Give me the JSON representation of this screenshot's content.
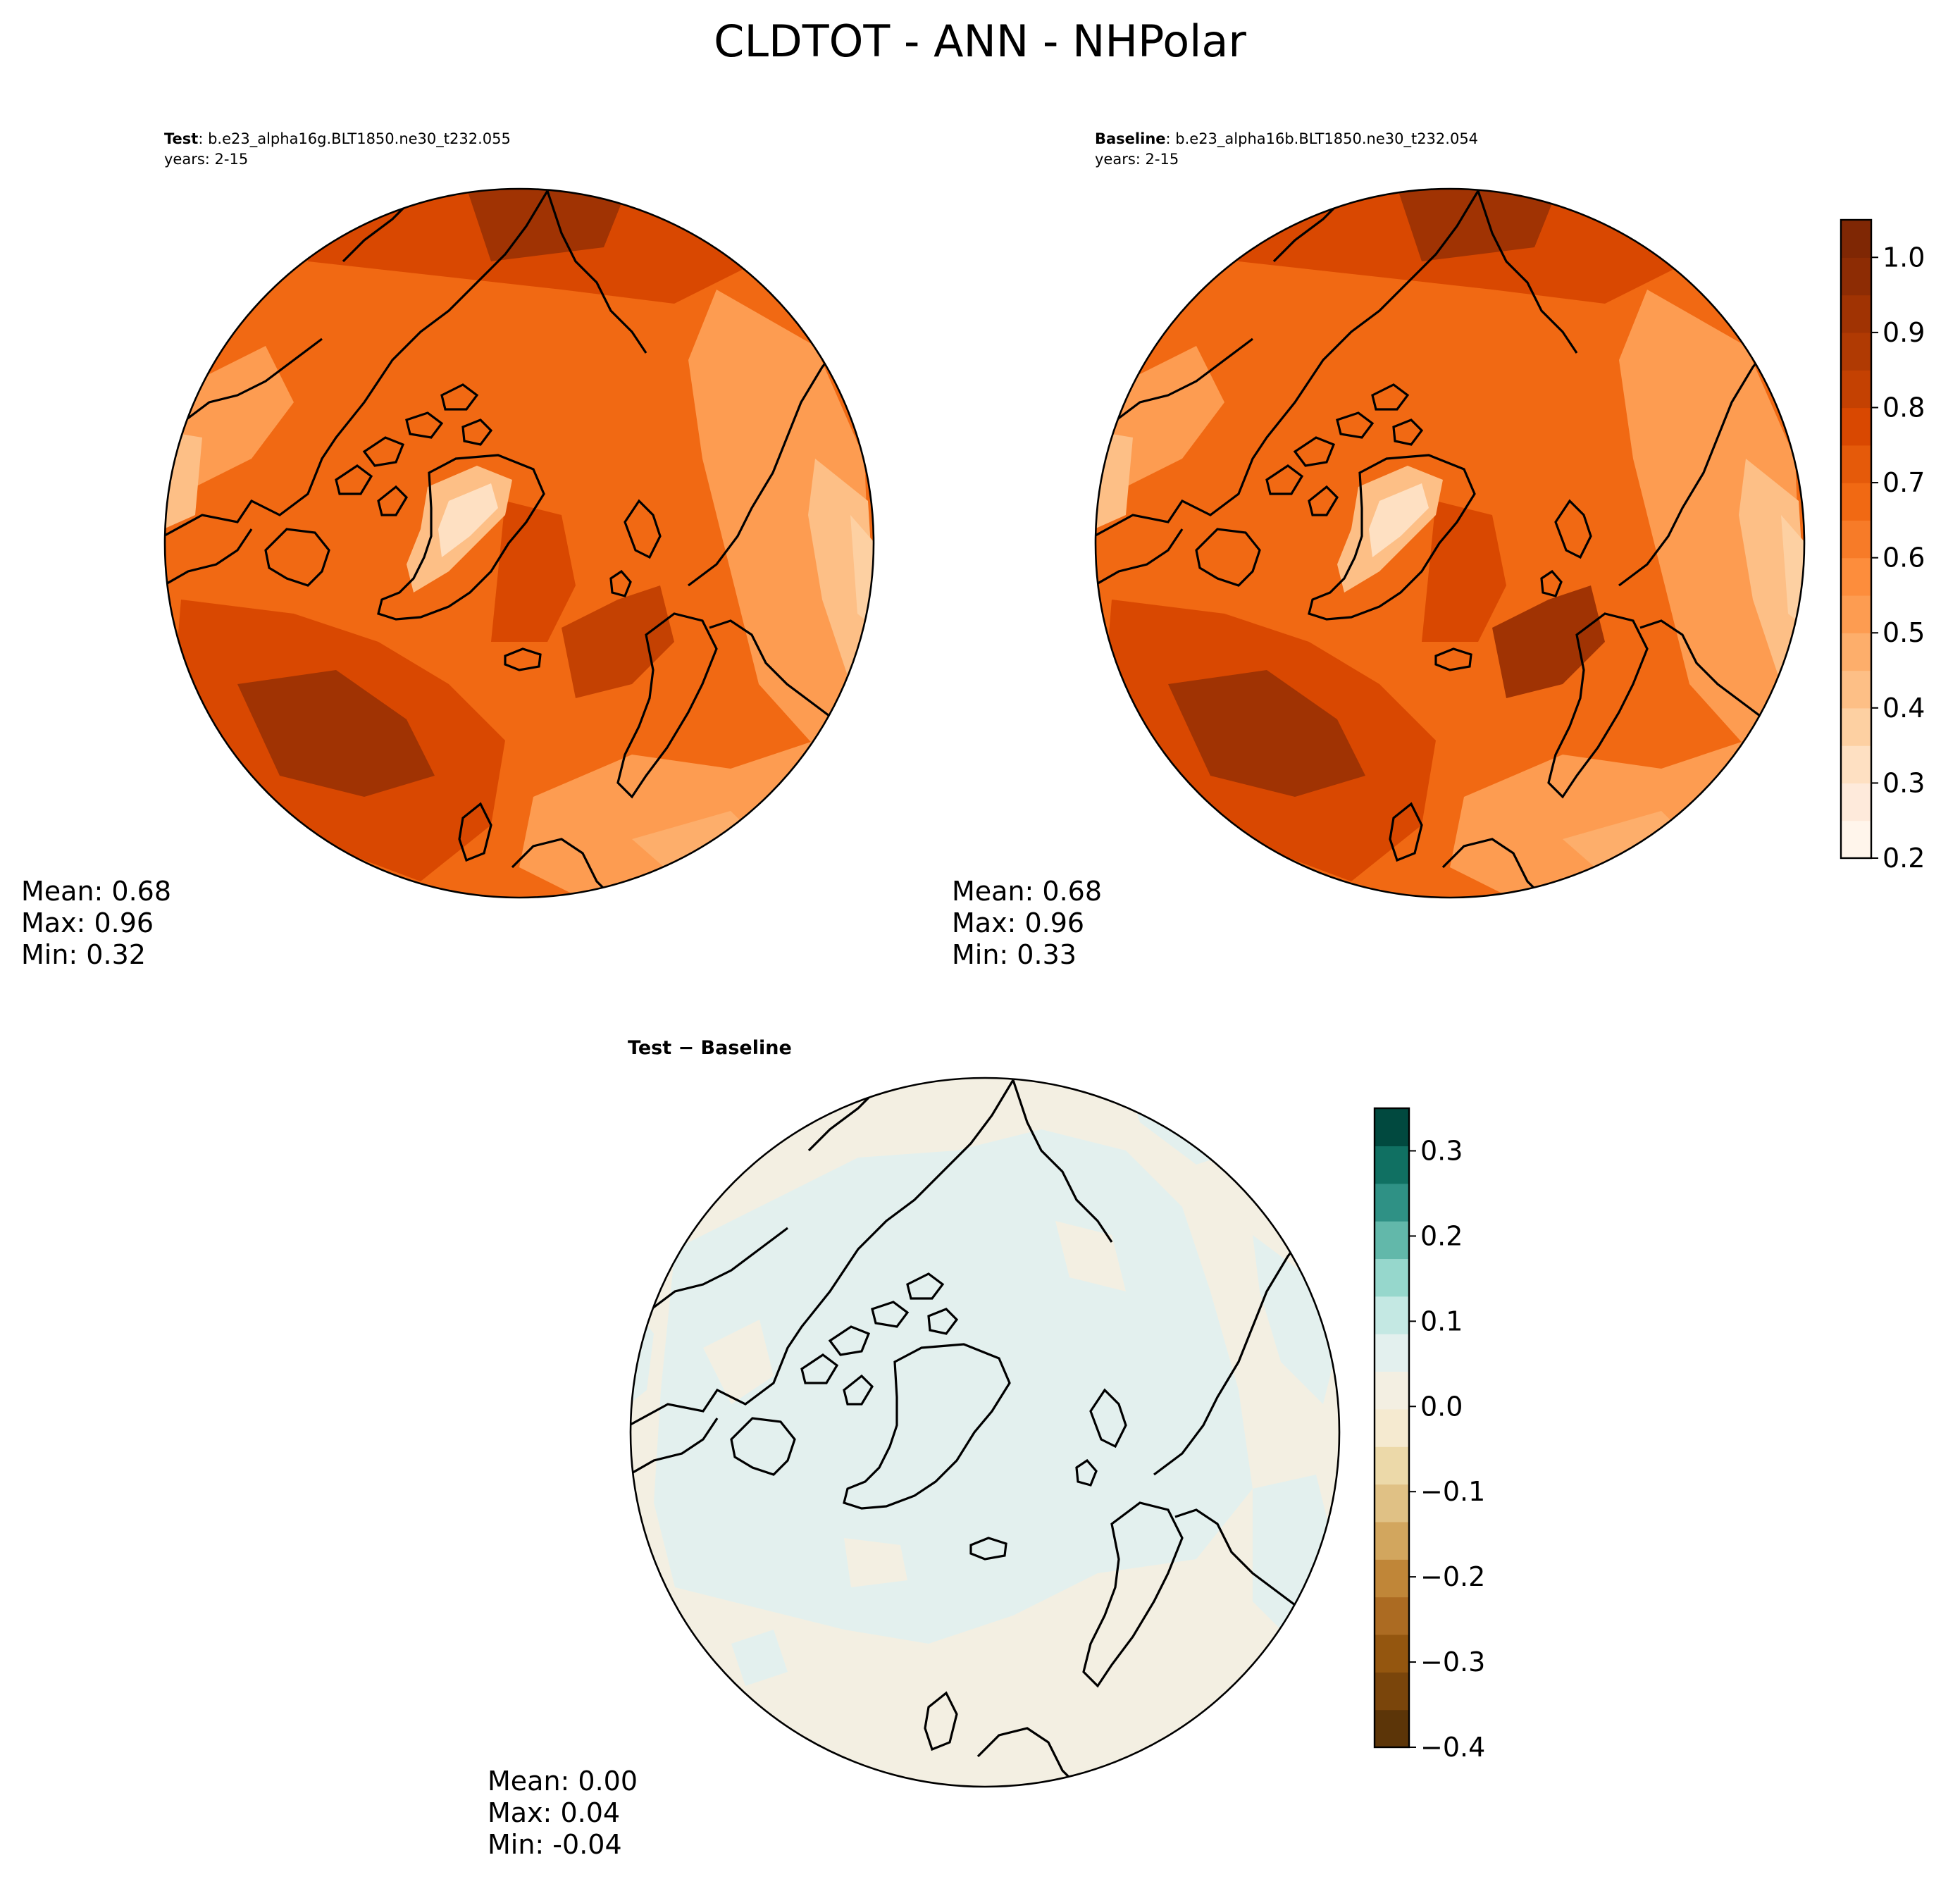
{
  "title": "CLDTOT - ANN - NHPolar",
  "panels": {
    "test": {
      "label": "Test",
      "case": ": b.e23_alpha16g.BLT1850.ne30_t232.055",
      "years": "years: 2-15",
      "stats": {
        "mean": "Mean:  0.68",
        "max": "Max:  0.96",
        "min": "Min:  0.32"
      }
    },
    "baseline": {
      "label": "Baseline",
      "case": ": b.e23_alpha16b.BLT1850.ne30_t232.054",
      "years": "years: 2-15",
      "stats": {
        "mean": "Mean:  0.68",
        "max": "Max:  0.96",
        "min": "Min:  0.33"
      }
    },
    "diff": {
      "label": "Test − Baseline",
      "stats": {
        "mean": "Mean:  0.00",
        "max": "Max:  0.04",
        "min": "Min: -0.04"
      }
    }
  },
  "colorbars": {
    "main": {
      "levels_min": 0.2,
      "levels_max": 1.05,
      "step": 0.05,
      "ticks": [
        0.2,
        0.3,
        0.4,
        0.5,
        0.6,
        0.7,
        0.8,
        0.9,
        1.0
      ],
      "tick_labels": [
        "0.2",
        "0.3",
        "0.4",
        "0.5",
        "0.6",
        "0.7",
        "0.8",
        "0.9",
        "1.0"
      ],
      "colors": [
        "#fff5eb",
        "#feeadb",
        "#fee0c2",
        "#fdd0a2",
        "#fdbf86",
        "#fdae6b",
        "#fd9c51",
        "#fd8d3c",
        "#f77b28",
        "#f16913",
        "#e55a0a",
        "#d94801",
        "#c44102",
        "#b03a03",
        "#a03303",
        "#8d2c04",
        "#7f2704"
      ]
    },
    "diff": {
      "levels_min": -0.4,
      "levels_max": 0.35,
      "step": 0.05,
      "ticks": [
        -0.4,
        -0.3,
        -0.2,
        -0.1,
        0.0,
        0.1,
        0.2,
        0.3
      ],
      "tick_labels": [
        "−0.4",
        "−0.3",
        "−0.2",
        "−0.1",
        "0.0",
        "0.1",
        "0.2",
        "0.3"
      ],
      "colors": [
        "#5c3508",
        "#7a450b",
        "#94560f",
        "#ac6b22",
        "#c08638",
        "#d2a65e",
        "#e0c185",
        "#ecd9a9",
        "#f5ead0",
        "#f3efe2",
        "#e3f0ee",
        "#c4e8e3",
        "#96d7cc",
        "#62b8aa",
        "#2f9185",
        "#107062",
        "#01493f"
      ]
    }
  },
  "colors": {
    "diff_ocean": "#e3f0ee",
    "diff_land": "#f3efe2",
    "coast": "#000000"
  }
}
